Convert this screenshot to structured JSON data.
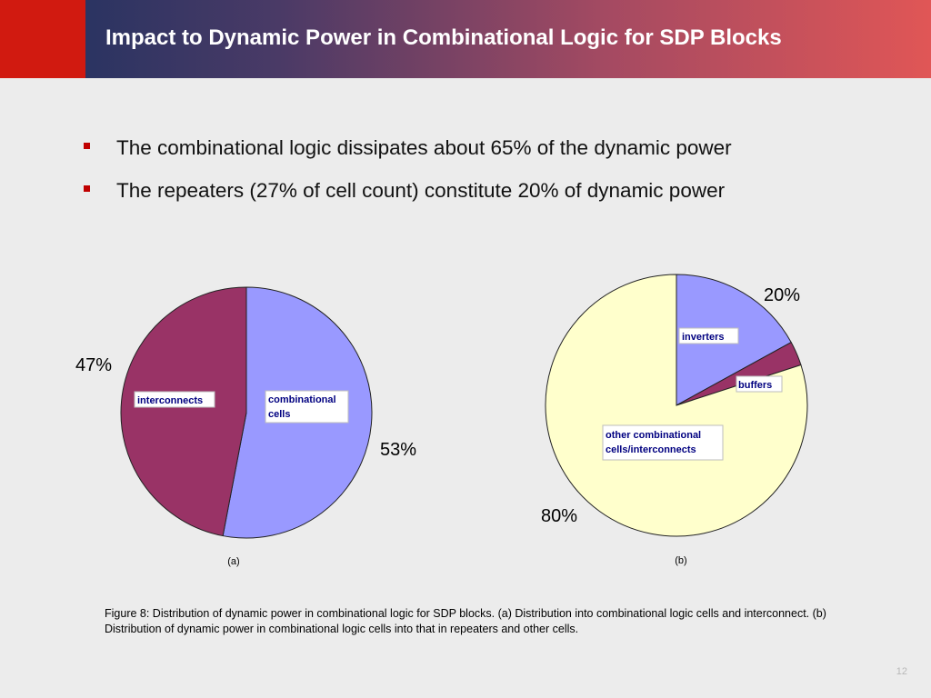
{
  "header": {
    "title": "Impact to Dynamic Power in Combinational Logic for SDP Blocks"
  },
  "bullets": [
    {
      "text": "The combinational logic dissipates about 65% of the dynamic power"
    },
    {
      "text": "The repeaters (27% of cell count) constitute 20% of dynamic power"
    }
  ],
  "colors": {
    "accent_red": "#d11a10",
    "bullet_red": "#c00000",
    "combinational_cells": "#9999ff",
    "interconnects": "#993366",
    "inverters": "#9999ff",
    "buffers": "#993366",
    "other": "#ffffcc"
  },
  "chart_data": [
    {
      "type": "pie",
      "panel_label": "(a)",
      "slices": [
        {
          "name": "combinational cells",
          "value": 53,
          "label": "53%",
          "color": "#9999ff"
        },
        {
          "name": "interconnects",
          "value": 47,
          "label": "47%",
          "color": "#993366"
        }
      ]
    },
    {
      "type": "pie",
      "panel_label": "(b)",
      "slices": [
        {
          "name": "inverters",
          "value": 17,
          "color": "#9999ff"
        },
        {
          "name": "buffers",
          "value": 3,
          "color": "#993366"
        },
        {
          "name": "other combinational cells/interconnects",
          "value": 80,
          "color": "#ffffcc"
        }
      ],
      "value_labels": [
        "20%",
        "80%"
      ]
    }
  ],
  "caption": "Figure 8: Distribution of dynamic power in combinational logic for SDP blocks. (a) Distribution into combinational logic cells and interconnect. (b) Distribution of dynamic power in combinational logic cells into that in repeaters and other cells.",
  "page_number": "12"
}
